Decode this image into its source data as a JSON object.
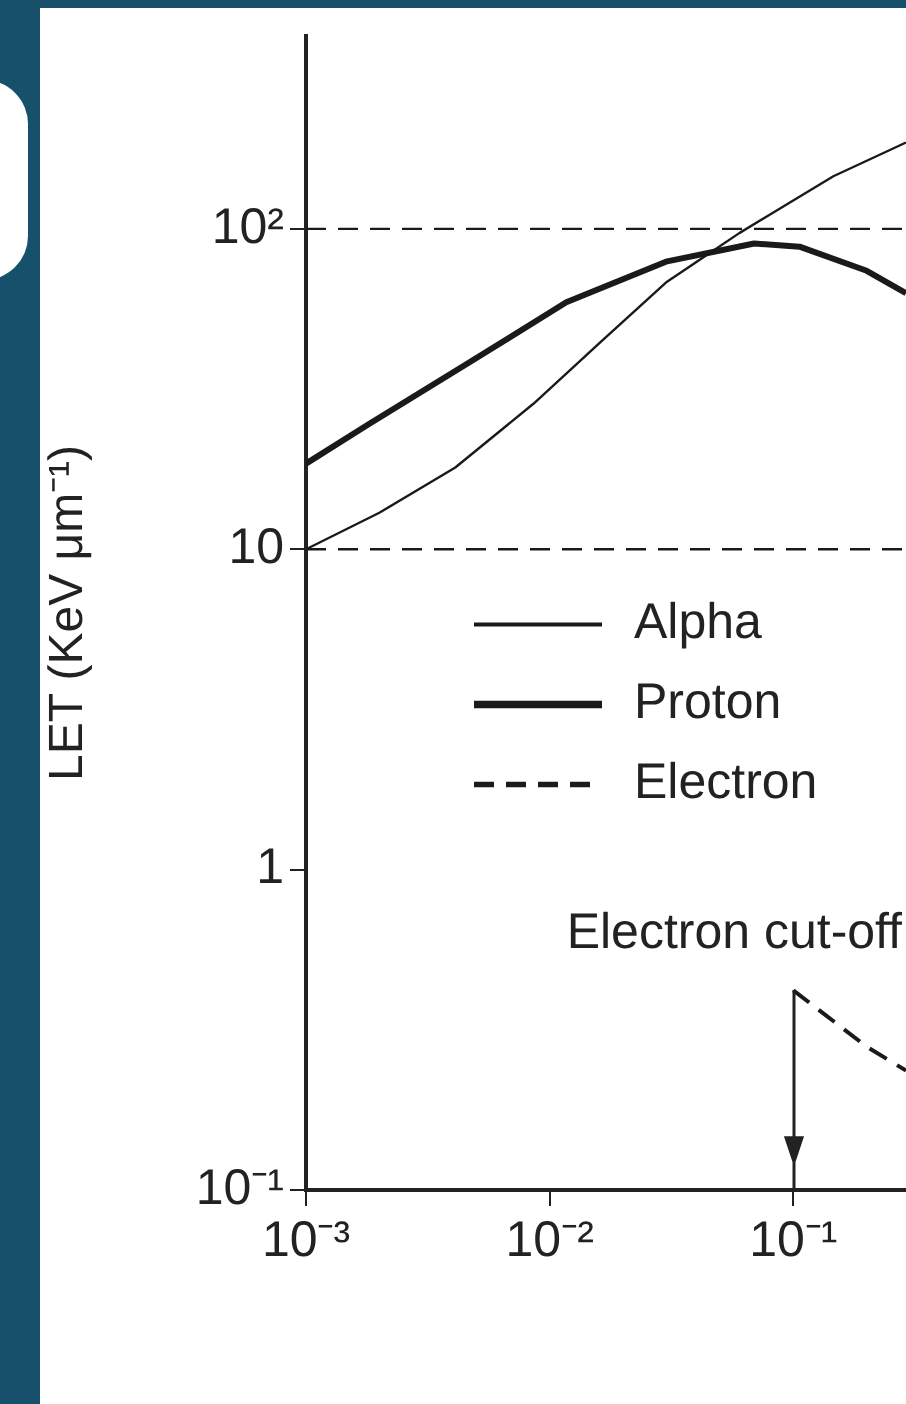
{
  "chart_data": {
    "type": "line",
    "ylabel": "LET (KeV μm⁻¹)",
    "log": "xy",
    "grid": false,
    "legend": "center",
    "marker": "none",
    "xlim": [
      0.001,
      0.29
    ],
    "xticks": [
      {
        "value": 0.001,
        "label": "10⁻³"
      },
      {
        "value": 0.01,
        "label": "10⁻²"
      },
      {
        "value": 0.1,
        "label": "10⁻¹"
      }
    ],
    "ylim": [
      0.1,
      400
    ],
    "yticks": [
      {
        "value": 0.1,
        "label": "10⁻¹"
      },
      1,
      10,
      {
        "value": 100,
        "label": "10²"
      }
    ],
    "series": [
      {
        "name": "Alpha",
        "color": "#1a1a1a",
        "line_style": "solid",
        "x": [
          0.001,
          0.002,
          0.0041,
          0.0086,
          0.016,
          0.03,
          0.06,
          0.146,
          0.29
        ],
        "values": [
          10,
          13,
          18,
          28.5,
          44,
          68,
          97,
          146,
          186
        ]
      },
      {
        "name": "Proton",
        "color": "#1a1a1a",
        "line_style": "solid",
        "x": [
          0.001,
          0.0018,
          0.0046,
          0.0117,
          0.03,
          0.069,
          0.106,
          0.2,
          0.29
        ],
        "values": [
          18.5,
          24.5,
          38,
          59,
          79,
          90,
          88,
          74,
          63
        ]
      },
      {
        "name": "Electron",
        "color": "#1a1a1a",
        "line_style": "dashed",
        "x": [
          0.1,
          0.2,
          0.29
        ],
        "values": [
          0.42,
          0.28,
          0.236
        ]
      }
    ],
    "ref_lines": [
      {
        "axis": "y",
        "value": 100,
        "label": null,
        "color": "#1a1a1a",
        "line_style": "dashed"
      },
      {
        "axis": "y",
        "value": 10,
        "label": null,
        "color": "#1a1a1a",
        "line_style": "dashed"
      }
    ],
    "annotations": [
      {
        "text": "Electron cut-off",
        "x": 0.1,
        "y": 0.42
      }
    ]
  }
}
